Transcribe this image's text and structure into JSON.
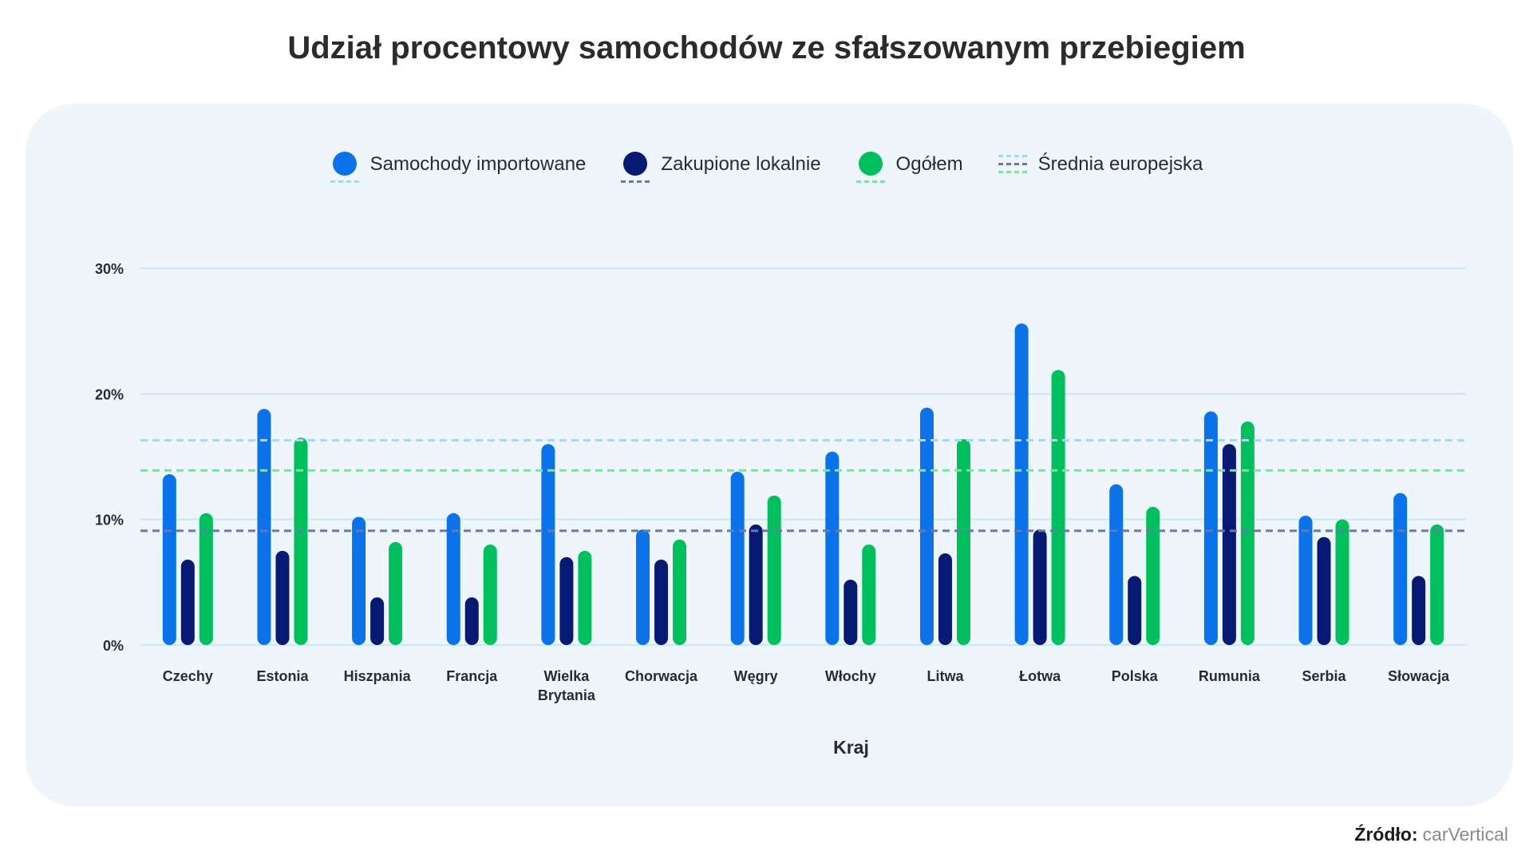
{
  "title": "Udział procentowy samochodów ze sfałszowanym przebiegiem",
  "source": {
    "label": "Źródło:",
    "value": "carVertical"
  },
  "legend": [
    {
      "label": "Samochody importowane",
      "color": "#0a73ea",
      "avg_color": "#a9d6f2"
    },
    {
      "label": "Zakupione lokalnie",
      "color": "#071a73",
      "avg_color": "#6a78b0"
    },
    {
      "label": "Ogółem",
      "color": "#00c05e",
      "avg_color": "#7fe0a0"
    },
    {
      "label": "Średnia europejska",
      "colors": [
        "#a9d6f2",
        "#6a78b0",
        "#7fe0a0"
      ]
    }
  ],
  "chart_data": {
    "type": "bar",
    "title": "Udział procentowy samochodów ze sfałszowanym przebiegiem",
    "xlabel": "Kraj",
    "ylabel": "",
    "ylim": [
      0,
      30
    ],
    "yticks": [
      0,
      10,
      20,
      30
    ],
    "ytick_labels": [
      "0%",
      "10%",
      "20%",
      "30%"
    ],
    "grid": true,
    "legend_position": "top-center",
    "categories": [
      "Czechy",
      "Estonia",
      "Hiszpania",
      "Francja",
      "Wielka Brytania",
      "Chorwacja",
      "Węgry",
      "Włochy",
      "Litwa",
      "Łotwa",
      "Polska",
      "Rumunia",
      "Serbia",
      "Słowacja"
    ],
    "category_lines": [
      [
        "Czechy"
      ],
      [
        "Estonia"
      ],
      [
        "Hiszpania"
      ],
      [
        "Francja"
      ],
      [
        "Wielka",
        "Brytania"
      ],
      [
        "Chorwacja"
      ],
      [
        "Węgry"
      ],
      [
        "Włochy"
      ],
      [
        "Litwa"
      ],
      [
        "Łotwa"
      ],
      [
        "Polska"
      ],
      [
        "Rumunia"
      ],
      [
        "Serbia"
      ],
      [
        "Słowacja"
      ]
    ],
    "series": [
      {
        "name": "Samochody importowane",
        "color": "#0a73ea",
        "values": [
          13.6,
          18.8,
          10.2,
          10.5,
          16.0,
          9.2,
          13.8,
          15.4,
          18.9,
          25.6,
          12.8,
          18.6,
          10.3,
          12.1
        ]
      },
      {
        "name": "Zakupione lokalnie",
        "color": "#071a73",
        "values": [
          6.8,
          7.5,
          3.8,
          3.8,
          7.0,
          6.8,
          9.6,
          5.2,
          7.3,
          9.2,
          5.5,
          16.0,
          8.6,
          5.5
        ]
      },
      {
        "name": "Ogółem",
        "color": "#00c05e",
        "values": [
          10.5,
          16.5,
          8.2,
          8.0,
          7.5,
          8.4,
          11.9,
          8.0,
          16.4,
          21.9,
          11.0,
          17.8,
          10.0,
          9.6
        ]
      }
    ],
    "reference_lines": [
      {
        "name": "Średnia europejska – Samochody importowane",
        "value": 16.3,
        "color": "#a9d6f2"
      },
      {
        "name": "Średnia europejska – Ogółem",
        "value": 13.9,
        "color": "#7fe0a0"
      },
      {
        "name": "Średnia europejska – Zakupione lokalnie",
        "value": 9.1,
        "color": "#6a78b0"
      }
    ]
  }
}
